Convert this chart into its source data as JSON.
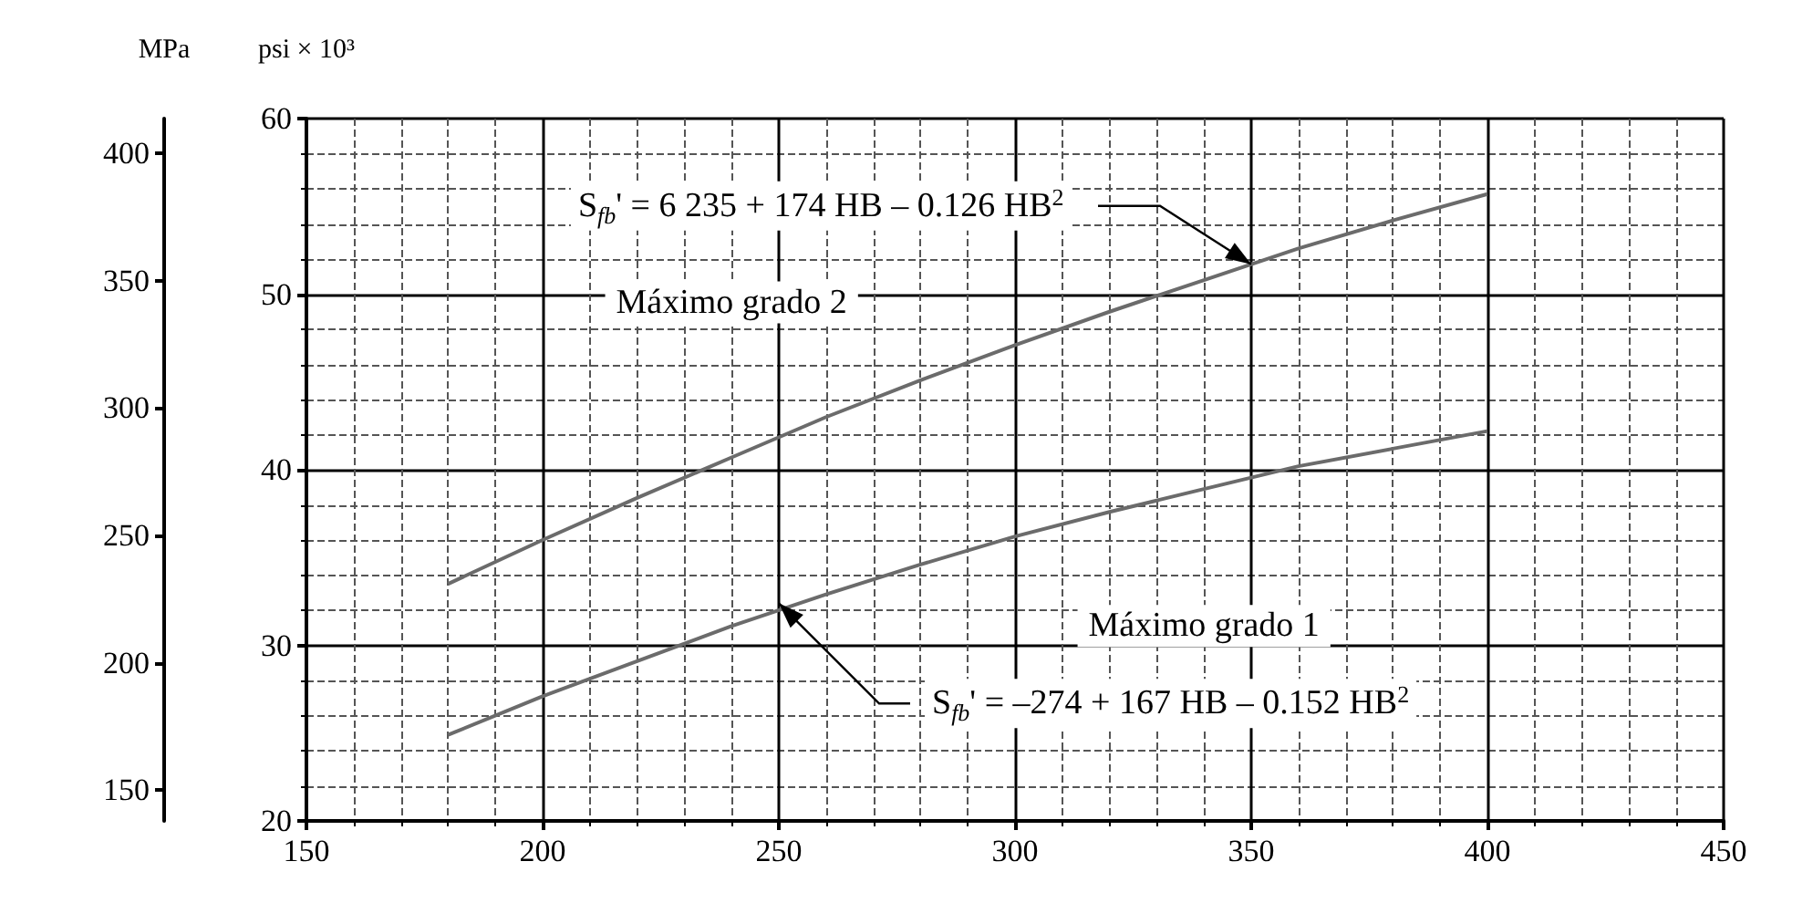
{
  "chart_data": {
    "type": "line",
    "ylabel": "psi × 10³",
    "y2label": "MPa",
    "xlim": [
      150,
      450
    ],
    "xticks": [
      150,
      200,
      250,
      300,
      350,
      400,
      450
    ],
    "ylim": [
      20,
      60
    ],
    "yticks": [
      20,
      30,
      40,
      50,
      60
    ],
    "y2lim": [
      137.9,
      413.7
    ],
    "y2ticks": [
      150,
      200,
      250,
      300,
      350,
      400
    ],
    "grid": true,
    "legend": false,
    "marker": "none",
    "line_style": "solid",
    "series": [
      {
        "name": "Máximo grado 2",
        "color": "#6b6b6b",
        "x": [
          180,
          200,
          220,
          240,
          260,
          280,
          300,
          320,
          340,
          360,
          380,
          400
        ],
        "values": [
          33.5,
          36.0,
          38.4,
          40.7,
          43.0,
          45.1,
          47.1,
          49.0,
          50.8,
          52.6,
          54.2,
          55.7
        ]
      },
      {
        "name": "Máximo grado 1",
        "color": "#6b6b6b",
        "x": [
          180,
          200,
          220,
          240,
          260,
          280,
          300,
          320,
          340,
          360,
          380,
          400
        ],
        "values": [
          24.9,
          27.1,
          29.1,
          31.1,
          32.9,
          34.6,
          36.2,
          37.6,
          38.9,
          40.2,
          41.2,
          42.2
        ]
      }
    ],
    "annotations": [
      {
        "text": "S$_{fb}$' = 6 235 + 174 HB – 0.126 HB$^{2}$",
        "x": 350,
        "y": 51.7
      },
      {
        "text": "S$_{fb}$' = –274 + 167 HB – 0.152 HB$^{2}$",
        "x": 250,
        "y": 32.4
      }
    ]
  }
}
